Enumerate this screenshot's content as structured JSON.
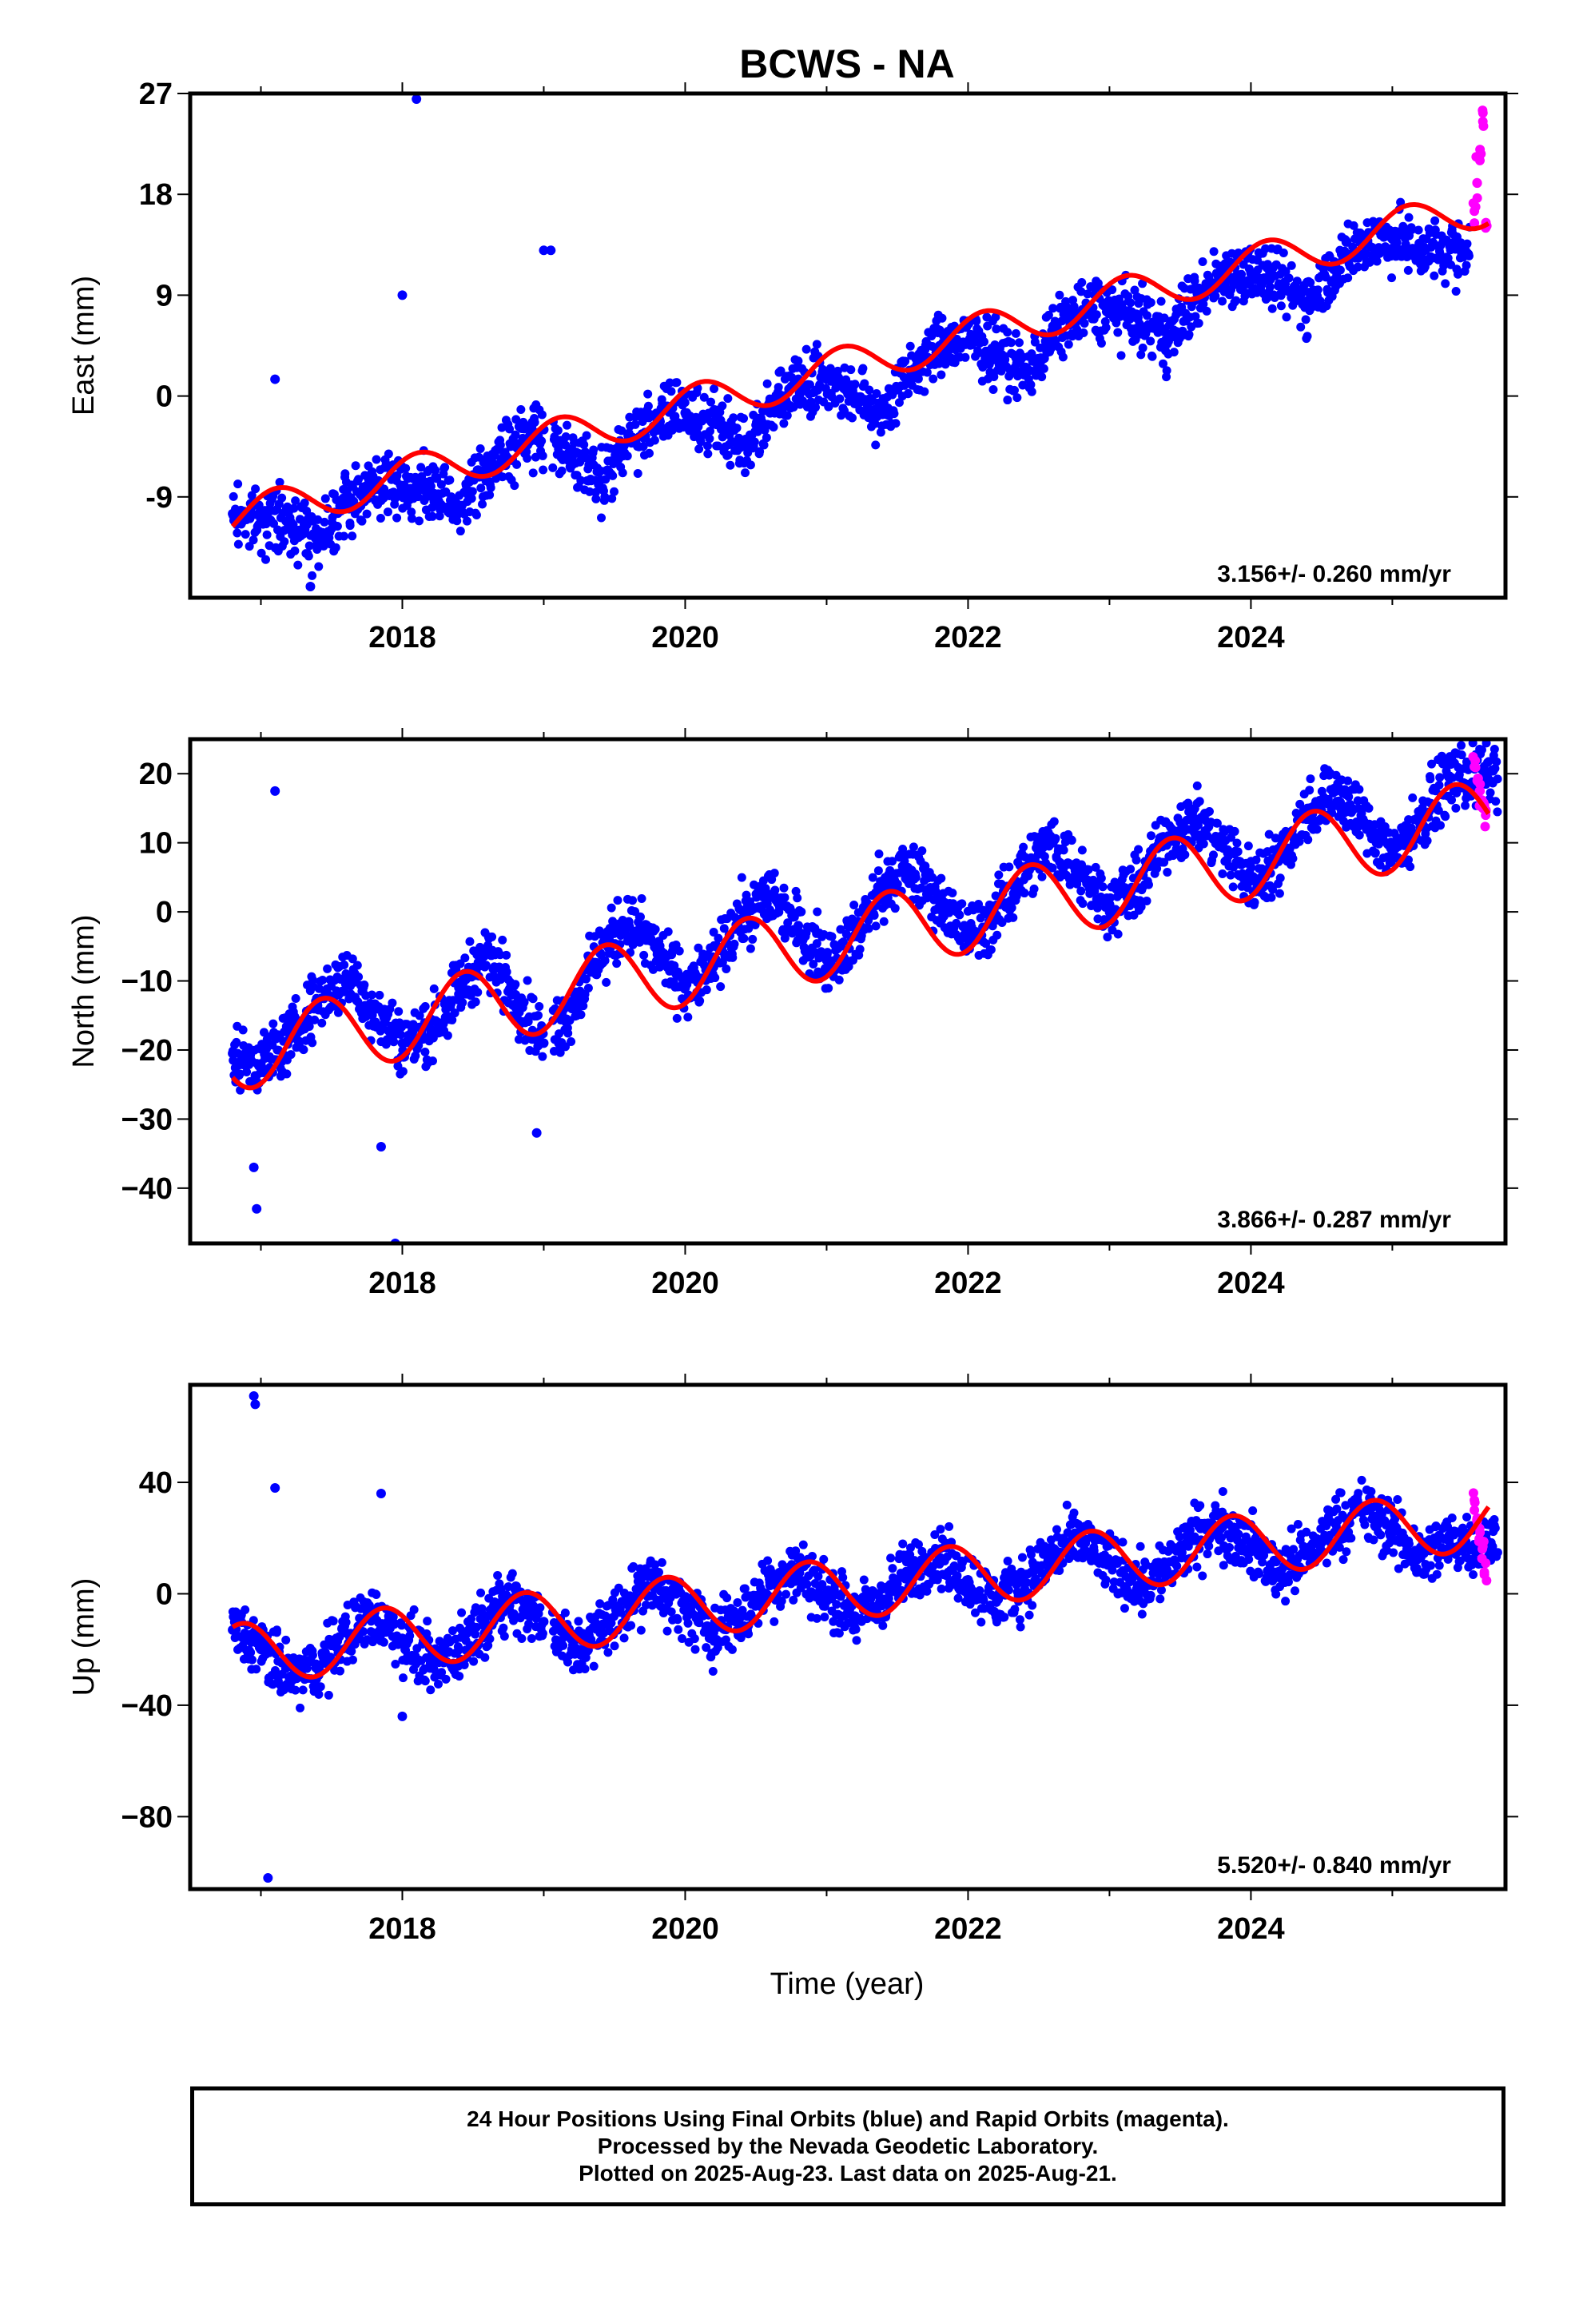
{
  "chart_data": {
    "type": "scatter",
    "title": "BCWS - NA",
    "xlabel": "Time (year)",
    "x_tick_labels": [
      "2018",
      "2020",
      "2022",
      "2024"
    ],
    "xlim": [
      2016.5,
      2025.8
    ],
    "panels": [
      {
        "name": "East",
        "ylabel": "East (mm)",
        "ylim": [
          -18,
          27
        ],
        "yticks": [
          -9,
          0,
          9,
          18,
          27
        ],
        "ytick_labels": [
          "-9",
          "0",
          "9",
          "18",
          "27"
        ],
        "velocity_label": "3.156+/- 0.260 mm/yr",
        "trend": {
          "rate": 3.156,
          "offset_at_2016_8": -11.0,
          "annual_amplitude": 1.8,
          "phase": 0.9
        },
        "series": [
          {
            "name": "Final Orbits",
            "color": "#0000ff",
            "x": [
              2016.8,
              2017.0,
              2017.2,
              2017.4,
              2017.6,
              2017.8,
              2018.0,
              2018.2,
              2018.4,
              2018.6,
              2018.8,
              2019.0,
              2019.2,
              2019.4,
              2019.6,
              2019.8,
              2020.0,
              2020.2,
              2020.4,
              2020.6,
              2020.8,
              2021.0,
              2021.2,
              2021.4,
              2021.6,
              2021.8,
              2022.0,
              2022.2,
              2022.4,
              2022.6,
              2022.8,
              2023.0,
              2023.2,
              2023.4,
              2023.6,
              2023.8,
              2024.0,
              2024.2,
              2024.4,
              2024.6,
              2024.8,
              2025.0,
              2025.2
            ],
            "y": [
              -10.5,
              -11.0,
              -11.2,
              -12.5,
              -9.5,
              -8.0,
              -8.0,
              -8.5,
              -10.0,
              -6.5,
              -4.5,
              -3.0,
              -5.5,
              -7.5,
              -4.0,
              -2.0,
              -1.5,
              -2.5,
              -4.5,
              -1.5,
              1.5,
              1.5,
              0.0,
              -1.5,
              2.0,
              4.5,
              4.8,
              4.0,
              2.0,
              5.5,
              7.5,
              7.8,
              7.0,
              5.0,
              8.5,
              10.8,
              11.0,
              10.0,
              8.5,
              11.5,
              13.8,
              14.0,
              13.0
            ]
          },
          {
            "name": "Rapid Orbits",
            "color": "#ff00ff",
            "x": [
              2025.58,
              2025.6,
              2025.62,
              2025.64,
              2025.66
            ],
            "y": [
              16.5,
              19.0,
              22.0,
              24.5,
              15.0
            ]
          }
        ],
        "outliers": [
          [
            2017.1,
            1.5
          ],
          [
            2018.0,
            9.0
          ],
          [
            2018.1,
            26.5
          ],
          [
            2019.0,
            13.0
          ],
          [
            2019.05,
            13.0
          ],
          [
            2017.35,
            -17.0
          ]
        ]
      },
      {
        "name": "North",
        "ylabel": "North (mm)",
        "ylim": [
          -48,
          25
        ],
        "yticks": [
          -40,
          -30,
          -20,
          -10,
          0,
          10,
          20
        ],
        "ytick_labels": [
          "−40",
          "−30",
          "−20",
          "−10",
          "0",
          "10",
          "20"
        ],
        "velocity_label": "3.866+/- 0.287 mm/yr",
        "trend": {
          "rate": 3.866,
          "offset_at_2016_8": -20.5,
          "annual_amplitude": 5.5,
          "phase": -1.2
        },
        "series": [
          {
            "name": "Final Orbits",
            "color": "#0000ff",
            "x": [
              2016.8,
              2017.0,
              2017.2,
              2017.4,
              2017.6,
              2017.8,
              2018.0,
              2018.2,
              2018.4,
              2018.6,
              2018.8,
              2019.0,
              2019.2,
              2019.4,
              2019.6,
              2019.8,
              2020.0,
              2020.2,
              2020.4,
              2020.6,
              2020.8,
              2021.0,
              2021.2,
              2021.4,
              2021.6,
              2021.8,
              2022.0,
              2022.2,
              2022.4,
              2022.6,
              2022.8,
              2023.0,
              2023.2,
              2023.4,
              2023.6,
              2023.8,
              2024.0,
              2024.2,
              2024.4,
              2024.6,
              2024.8,
              2025.0,
              2025.2,
              2025.4
            ],
            "y": [
              -20.5,
              -22.0,
              -18.5,
              -13.0,
              -9.5,
              -14.0,
              -19.0,
              -17.0,
              -11.0,
              -6.0,
              -12.0,
              -19.0,
              -14.0,
              -6.0,
              -1.5,
              -5.5,
              -11.0,
              -8.0,
              -1.0,
              2.5,
              -2.0,
              -7.0,
              -3.5,
              3.5,
              6.0,
              1.5,
              -3.5,
              -0.5,
              6.5,
              10.0,
              5.5,
              1.0,
              3.5,
              10.5,
              13.5,
              9.5,
              4.5,
              7.5,
              14.5,
              17.5,
              13.0,
              8.5,
              13.0,
              19.5
            ]
          },
          {
            "name": "Rapid Orbits",
            "color": "#ff00ff",
            "x": [
              2025.58,
              2025.6,
              2025.62,
              2025.64,
              2025.66
            ],
            "y": [
              21.0,
              19.0,
              17.5,
              15.0,
              14.0
            ]
          }
        ],
        "outliers": [
          [
            2017.1,
            17.5
          ],
          [
            2016.95,
            -37.0
          ],
          [
            2016.97,
            -43.0
          ],
          [
            2017.85,
            -34.0
          ],
          [
            2017.95,
            -48.0
          ],
          [
            2018.95,
            -32.0
          ]
        ]
      },
      {
        "name": "Up",
        "ylabel": "Up (mm)",
        "ylim": [
          -106,
          75
        ],
        "yticks": [
          -80,
          -40,
          0,
          40
        ],
        "ytick_labels": [
          "−80",
          "−40",
          "0",
          "40"
        ],
        "velocity_label": "5.520+/- 0.840 mm/yr",
        "trend": {
          "rate": 5.52,
          "offset_at_2016_8": -22.0,
          "annual_amplitude": 11.0,
          "phase": 2.4
        },
        "series": [
          {
            "name": "Final Orbits",
            "color": "#0000ff",
            "x": [
              2016.8,
              2017.0,
              2017.2,
              2017.4,
              2017.6,
              2017.8,
              2018.0,
              2018.2,
              2018.4,
              2018.6,
              2018.8,
              2019.0,
              2019.2,
              2019.4,
              2019.6,
              2019.8,
              2020.0,
              2020.2,
              2020.4,
              2020.6,
              2020.8,
              2021.0,
              2021.2,
              2021.4,
              2021.6,
              2021.8,
              2022.0,
              2022.2,
              2022.4,
              2022.6,
              2022.8,
              2023.0,
              2023.2,
              2023.4,
              2023.6,
              2023.8,
              2024.0,
              2024.2,
              2024.4,
              2024.6,
              2024.8,
              2025.0,
              2025.2,
              2025.4
            ],
            "y": [
              -13.0,
              -20.0,
              -30.0,
              -27.0,
              -14.0,
              -8.0,
              -16.0,
              -25.0,
              -20.0,
              -8.0,
              -2.0,
              -10.0,
              -20.0,
              -14.0,
              -2.0,
              3.0,
              -6.0,
              -14.0,
              -8.0,
              3.0,
              8.0,
              0.0,
              -8.0,
              -2.0,
              9.0,
              13.0,
              5.0,
              -3.0,
              4.0,
              14.0,
              19.0,
              11.0,
              3.0,
              9.0,
              20.0,
              24.0,
              17.0,
              8.0,
              14.0,
              25.0,
              30.0,
              22.0,
              13.0,
              19.0
            ]
          },
          {
            "name": "Rapid Orbits",
            "color": "#ff00ff",
            "x": [
              2025.58,
              2025.6,
              2025.62,
              2025.64,
              2025.66
            ],
            "y": [
              30.0,
              26.0,
              22.0,
              17.0,
              11.0
            ]
          }
        ],
        "outliers": [
          [
            2016.95,
            71.0
          ],
          [
            2016.96,
            68.0
          ],
          [
            2017.1,
            38.0
          ],
          [
            2017.05,
            -102.0
          ],
          [
            2017.85,
            36.0
          ],
          [
            2018.0,
            -44.0
          ]
        ]
      }
    ]
  },
  "footer": {
    "line1": "24 Hour Positions Using Final Orbits (blue) and Rapid Orbits (magenta).",
    "line2": "Processed by the Nevada Geodetic Laboratory.",
    "line3": "Plotted on 2025-Aug-23. Last data on 2025-Aug-21."
  },
  "colors": {
    "final": "#0000ff",
    "rapid": "#ff00ff",
    "model": "#ff0000"
  }
}
